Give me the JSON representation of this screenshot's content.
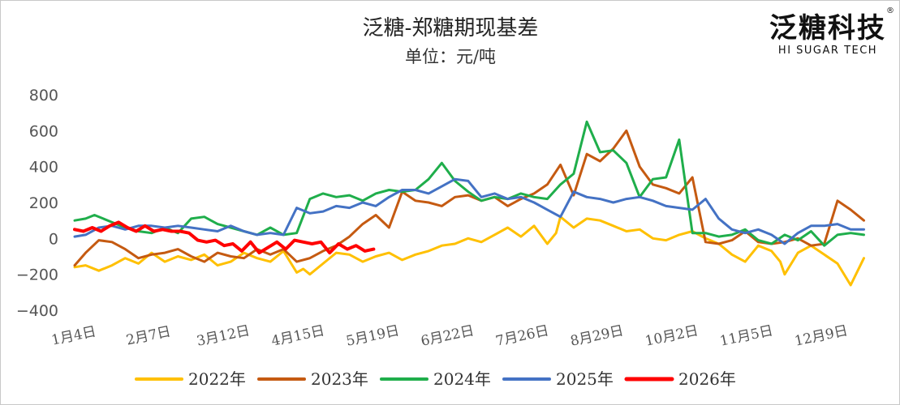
{
  "brand": {
    "name_cn": "泛糖科技",
    "name_en": "HI SUGAR TECH",
    "registered": "®"
  },
  "chart_data": {
    "type": "line",
    "title": "泛糖-郑糖期现基差",
    "subtitle": "单位：元/吨",
    "ylim": [
      -400,
      800
    ],
    "yticks": [
      800,
      600,
      400,
      200,
      0,
      -200,
      -400
    ],
    "xticks": [
      "1月4日",
      "2月7日",
      "3月12日",
      "4月15日",
      "5月19日",
      "6月22日",
      "7月26日",
      "8月29日",
      "10月2日",
      "11月5日",
      "12月9日"
    ],
    "grid": false,
    "legend_position": "bottom",
    "x_unit": "day of year",
    "series": [
      {
        "name": "2022年",
        "color": "#FFC000",
        "x": [
          1,
          6,
          12,
          18,
          24,
          30,
          36,
          42,
          48,
          54,
          60,
          66,
          72,
          78,
          84,
          90,
          96,
          102,
          105,
          108,
          114,
          120,
          126,
          132,
          138,
          144,
          150,
          156,
          162,
          168,
          174,
          180,
          186,
          192,
          198,
          204,
          210,
          216,
          220,
          222,
          228,
          234,
          240,
          246,
          252,
          258,
          264,
          270,
          276,
          282,
          288,
          294,
          300,
          306,
          312,
          318,
          322,
          324,
          330,
          336,
          342,
          348,
          354,
          360
        ],
        "y": [
          -160,
          -150,
          -180,
          -150,
          -110,
          -140,
          -80,
          -130,
          -100,
          -120,
          -90,
          -150,
          -130,
          -80,
          -110,
          -130,
          -70,
          -190,
          -170,
          -200,
          -140,
          -80,
          -90,
          -130,
          -100,
          -80,
          -120,
          -90,
          -70,
          -40,
          -30,
          0,
          -20,
          20,
          60,
          10,
          70,
          -30,
          30,
          120,
          60,
          110,
          100,
          70,
          40,
          50,
          0,
          -10,
          20,
          40,
          0,
          -30,
          -90,
          -130,
          -40,
          -70,
          -130,
          -200,
          -80,
          -40,
          -90,
          -140,
          -260,
          -110
        ]
      },
      {
        "name": "2023年",
        "color": "#C55A11",
        "x": [
          1,
          6,
          12,
          18,
          24,
          30,
          36,
          42,
          48,
          54,
          60,
          66,
          72,
          78,
          84,
          90,
          96,
          102,
          108,
          114,
          120,
          126,
          132,
          138,
          144,
          150,
          156,
          162,
          168,
          174,
          180,
          186,
          192,
          198,
          204,
          210,
          216,
          222,
          228,
          234,
          240,
          246,
          252,
          258,
          264,
          270,
          276,
          282,
          288,
          294,
          300,
          306,
          312,
          318,
          324,
          330,
          336,
          342,
          348,
          354,
          360
        ],
        "y": [
          -150,
          -80,
          -10,
          -20,
          -60,
          -110,
          -90,
          -80,
          -60,
          -100,
          -130,
          -80,
          -100,
          -110,
          -60,
          -90,
          -60,
          -130,
          -110,
          -70,
          -40,
          10,
          80,
          130,
          60,
          260,
          210,
          200,
          180,
          230,
          240,
          210,
          230,
          180,
          220,
          250,
          300,
          410,
          240,
          470,
          430,
          500,
          600,
          400,
          300,
          280,
          250,
          340,
          -20,
          -30,
          -10,
          40,
          -20,
          -30,
          -20,
          0,
          -40,
          -30,
          210,
          160,
          100
        ]
      },
      {
        "name": "2024年",
        "color": "#1FAE4B",
        "x": [
          1,
          6,
          10,
          14,
          18,
          24,
          30,
          36,
          42,
          48,
          54,
          60,
          66,
          72,
          78,
          84,
          90,
          96,
          102,
          108,
          114,
          120,
          126,
          132,
          138,
          144,
          150,
          156,
          162,
          168,
          174,
          180,
          186,
          192,
          198,
          204,
          210,
          216,
          222,
          228,
          234,
          240,
          246,
          252,
          258,
          264,
          270,
          276,
          282,
          288,
          294,
          300,
          306,
          312,
          318,
          324,
          330,
          336,
          342,
          348,
          354,
          360
        ],
        "y": [
          100,
          110,
          130,
          110,
          90,
          60,
          40,
          30,
          60,
          30,
          110,
          120,
          80,
          60,
          40,
          20,
          60,
          20,
          30,
          220,
          250,
          230,
          240,
          210,
          250,
          270,
          260,
          270,
          330,
          420,
          320,
          260,
          210,
          230,
          220,
          250,
          230,
          220,
          300,
          360,
          650,
          480,
          490,
          420,
          230,
          330,
          340,
          550,
          30,
          30,
          10,
          20,
          50,
          -10,
          -30,
          20,
          -10,
          40,
          -40,
          20,
          30,
          20
        ]
      },
      {
        "name": "2025年",
        "color": "#4472C4",
        "x": [
          1,
          6,
          12,
          18,
          24,
          30,
          36,
          42,
          48,
          54,
          60,
          66,
          72,
          78,
          84,
          90,
          96,
          102,
          108,
          114,
          120,
          126,
          132,
          138,
          144,
          150,
          156,
          162,
          168,
          174,
          180,
          186,
          192,
          198,
          204,
          210,
          216,
          222,
          228,
          234,
          240,
          246,
          252,
          258,
          264,
          270,
          276,
          282,
          288,
          294,
          300,
          306,
          312,
          318,
          324,
          330,
          336,
          342,
          348,
          354,
          360
        ],
        "y": [
          10,
          20,
          60,
          70,
          50,
          70,
          70,
          60,
          70,
          60,
          50,
          40,
          70,
          40,
          20,
          30,
          20,
          170,
          140,
          150,
          180,
          170,
          200,
          180,
          230,
          270,
          270,
          250,
          290,
          330,
          320,
          230,
          250,
          220,
          230,
          200,
          160,
          120,
          260,
          230,
          220,
          200,
          220,
          230,
          210,
          180,
          170,
          160,
          220,
          110,
          50,
          30,
          50,
          20,
          -30,
          30,
          70,
          70,
          80,
          50,
          50
        ]
      },
      {
        "name": "2026年",
        "color": "#FF0000",
        "x": [
          1,
          5,
          9,
          13,
          17,
          21,
          25,
          29,
          33,
          37,
          41,
          45,
          49,
          53,
          57,
          61,
          65,
          69,
          73,
          77,
          81,
          85,
          89,
          93,
          97,
          101,
          105,
          109,
          113,
          117,
          121,
          125,
          129,
          133,
          137
        ],
        "y": [
          50,
          40,
          60,
          40,
          70,
          90,
          60,
          40,
          70,
          40,
          50,
          40,
          40,
          30,
          -10,
          -20,
          -10,
          -40,
          -30,
          -70,
          -20,
          -80,
          -50,
          -20,
          -60,
          -10,
          -20,
          -30,
          -20,
          -80,
          -30,
          -60,
          -40,
          -70,
          -60
        ]
      }
    ]
  }
}
